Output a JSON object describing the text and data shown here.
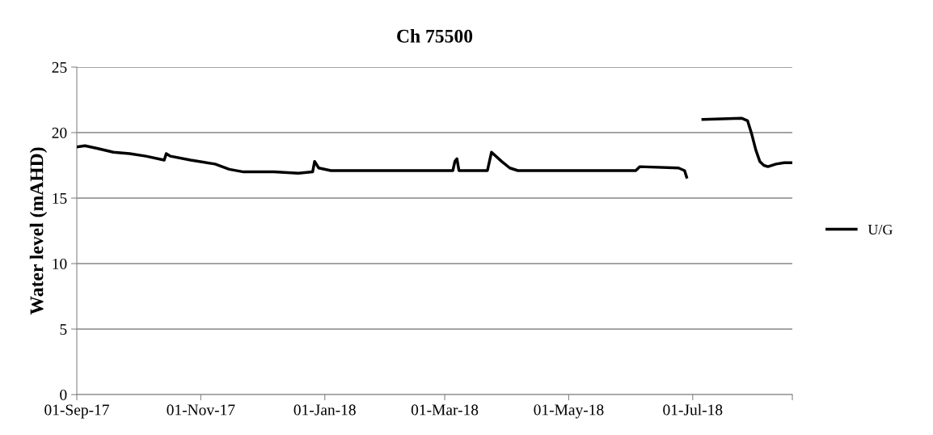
{
  "chart_data": {
    "type": "line",
    "title": "Ch 75500",
    "ylabel": "Water level (mAHD)",
    "x": [
      "2017-09-01",
      "2017-09-05",
      "2017-09-11",
      "2017-09-19",
      "2017-09-27",
      "2017-10-05",
      "2017-10-14",
      "2017-10-15",
      "2017-10-17",
      "2017-10-27",
      "2017-11-08",
      "2017-11-15",
      "2017-11-22",
      "2017-12-07",
      "2017-12-19",
      "2017-12-26",
      "2017-12-27",
      "2017-12-29",
      "2018-01-04",
      "2018-02-01",
      "2018-03-05",
      "2018-03-06",
      "2018-03-07",
      "2018-03-08",
      "2018-03-22",
      "2018-03-24",
      "2018-03-29",
      "2018-04-02",
      "2018-04-06",
      "2018-04-30",
      "2018-06-03",
      "2018-06-05",
      "2018-06-24",
      "2018-06-27",
      "2018-06-28",
      "2018-07-02",
      "2018-07-06",
      "2018-07-25",
      "2018-07-28",
      "2018-07-30",
      "2018-08-01",
      "2018-08-03",
      "2018-08-05",
      "2018-08-07",
      "2018-08-11",
      "2018-08-15",
      "2018-08-19"
    ],
    "series": [
      {
        "name": "U/G",
        "color": "#000000",
        "values": [
          18.9,
          19.0,
          18.8,
          18.5,
          18.4,
          18.2,
          17.9,
          18.4,
          18.2,
          17.9,
          17.6,
          17.2,
          17.0,
          17.0,
          16.9,
          17.0,
          17.8,
          17.3,
          17.1,
          17.1,
          17.1,
          17.8,
          18.0,
          17.1,
          17.1,
          18.5,
          17.8,
          17.3,
          17.1,
          17.1,
          17.1,
          17.4,
          17.3,
          17.1,
          16.6,
          null,
          21.0,
          21.1,
          20.9,
          19.9,
          18.7,
          17.8,
          17.5,
          17.4,
          17.6,
          17.7,
          17.7
        ]
      }
    ],
    "xlim": [
      "2017-09-01",
      "2018-08-19"
    ],
    "xticks": [
      {
        "value": "2017-09-01",
        "label": "01-Sep-17"
      },
      {
        "value": "2017-11-01",
        "label": "01-Nov-17"
      },
      {
        "value": "2018-01-01",
        "label": "01-Jan-18"
      },
      {
        "value": "2018-03-01",
        "label": "01-Mar-18"
      },
      {
        "value": "2018-05-01",
        "label": "01-May-18"
      },
      {
        "value": "2018-07-01",
        "label": "01-Jul-18"
      },
      {
        "value": "2018-08-19",
        "label": null
      }
    ],
    "ylim": [
      0,
      25
    ],
    "yticks": [
      0,
      5,
      10,
      15,
      20,
      25
    ],
    "grid": "y",
    "legend": "right",
    "line_style": "solid",
    "marker": "none"
  }
}
